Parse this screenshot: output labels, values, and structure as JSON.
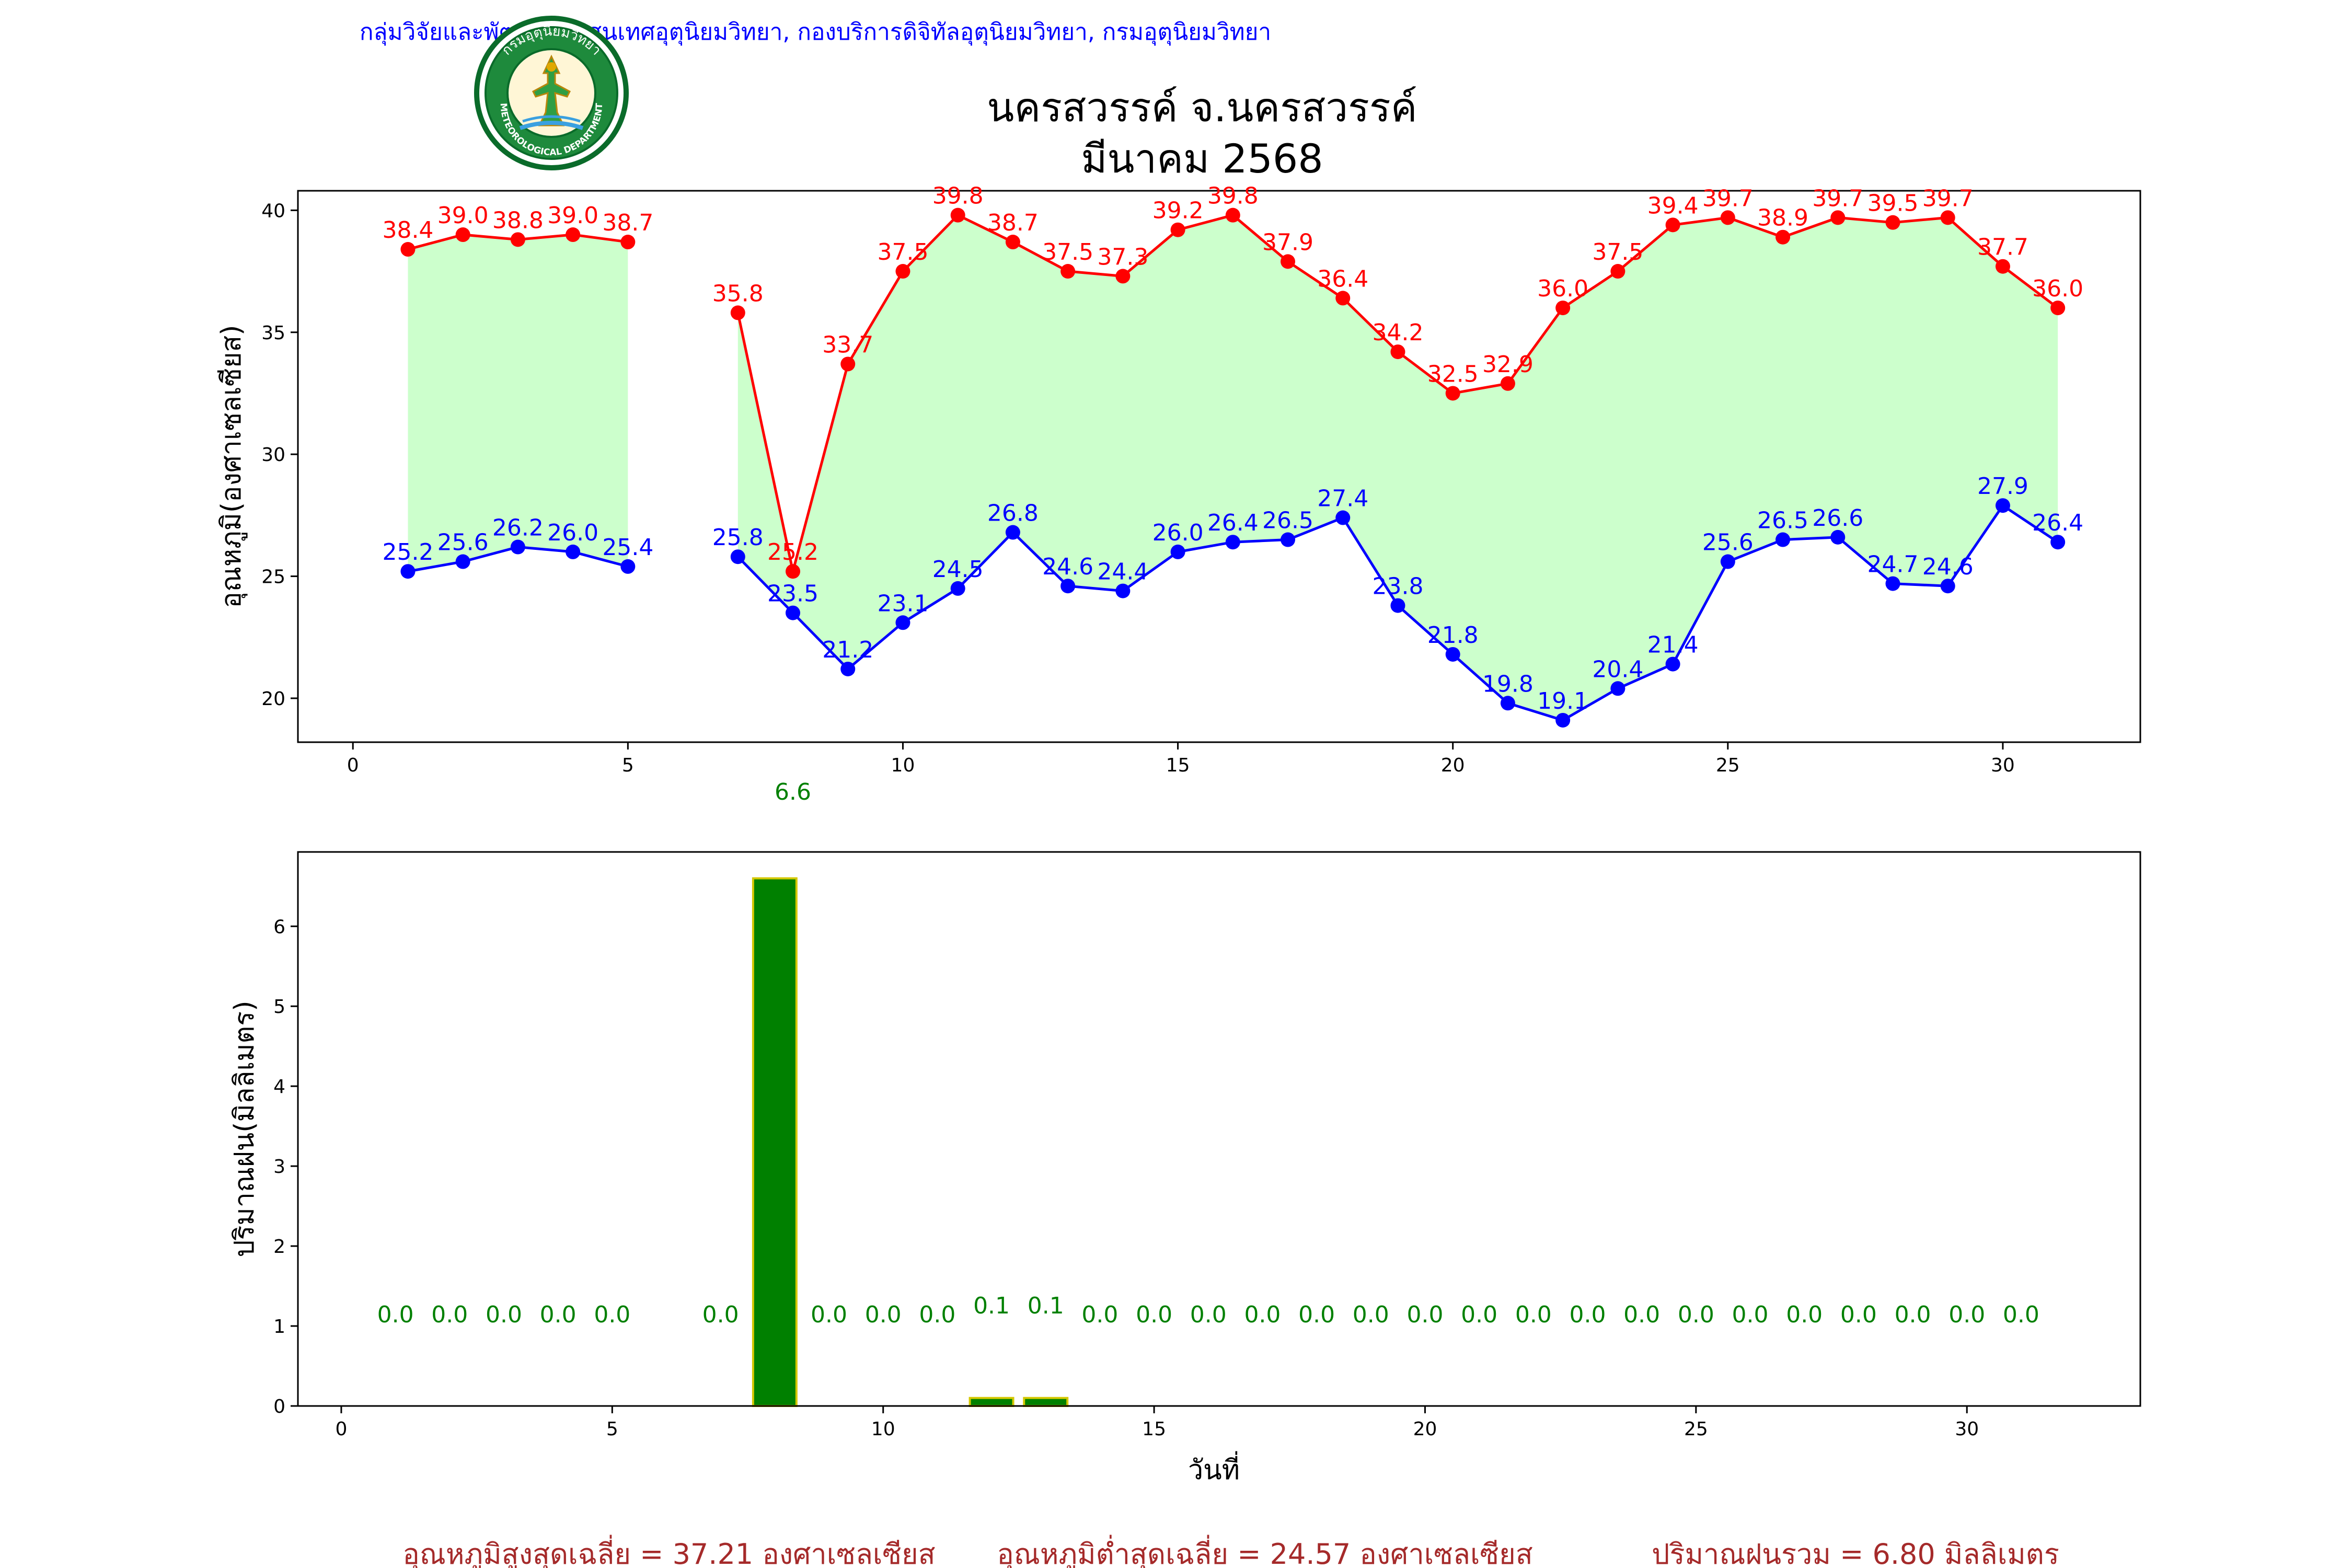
{
  "header": {
    "agency": "กลุ่มวิจัยและพัฒนาสารสนเทศอุตุนิยมวิทยา, กองบริการดิจิทัลอุตุนิยมวิทยา, กรมอุตุนิยมวิทยา",
    "title_line1": "นครสวรรค์  จ.นครสวรรค์",
    "title_line2": "มีนาคม 2568",
    "logo_text_top": "กรมอุตุนิยมวิทยา",
    "logo_text_bottom": "METEOROLOGICAL DEPARTMENT"
  },
  "footer": {
    "avg_max": "อุณหภูมิสูงสุดเฉลี่ย = 37.21 องศาเซลเซียส",
    "avg_min": "อุณหภูมิต่ำสุดเฉลี่ย = 24.57 องศาเซลเซียส",
    "total_rain": "ปริมาณฝนรวม = 6.80 มิลลิเมตร"
  },
  "colors": {
    "max_line": "#ff0000",
    "min_line": "#0000ff",
    "fill": "#ccffcc",
    "rain_bar": "#008000",
    "rain_edge": "#d4c800",
    "header_blue": "#0000ff",
    "footer_brown": "#a52a2a"
  },
  "chart_data": [
    {
      "type": "line",
      "ylabel": "อุณหภูมิ(องศาเซลเซียส)",
      "xlim": [
        -1,
        32.5
      ],
      "ylim": [
        18.2,
        40.8
      ],
      "xticks": [
        0,
        5,
        10,
        15,
        20,
        25,
        30
      ],
      "yticks": [
        20,
        25,
        30,
        35,
        40
      ],
      "rain_note": {
        "x": 8,
        "label": "6.6"
      },
      "days": [
        1,
        2,
        3,
        4,
        5,
        7,
        8,
        9,
        10,
        11,
        12,
        13,
        14,
        15,
        16,
        17,
        18,
        19,
        20,
        21,
        22,
        23,
        24,
        25,
        26,
        27,
        28,
        29,
        30,
        31
      ],
      "series": [
        {
          "key": "max",
          "values": [
            38.4,
            39.0,
            38.8,
            39.0,
            38.7,
            35.8,
            25.2,
            33.7,
            37.5,
            39.8,
            38.7,
            37.5,
            37.3,
            39.2,
            39.8,
            37.9,
            36.4,
            34.2,
            32.5,
            32.9,
            36.0,
            37.5,
            39.4,
            39.7,
            38.9,
            39.7,
            39.5,
            39.7,
            37.7,
            36.0
          ],
          "labels": [
            "38.4",
            "39.0",
            "38.8",
            "39.0",
            "38.7",
            "35.8",
            "25.2",
            "33.7",
            "37.5",
            "39.8",
            "38.7",
            "37.5",
            "37.3",
            "39.2",
            "39.8",
            "37.9",
            "36.4",
            "34.2",
            "32.5",
            "32.9",
            "36.0",
            "37.5",
            "39.4",
            "39.7",
            "38.9",
            "39.7",
            "39.5",
            "39.7",
            "37.7",
            "36.0"
          ]
        },
        {
          "key": "min",
          "values": [
            25.2,
            25.6,
            26.2,
            26.0,
            25.4,
            25.8,
            23.5,
            21.2,
            23.1,
            24.5,
            26.8,
            24.6,
            24.4,
            26.0,
            26.4,
            26.5,
            27.4,
            23.8,
            21.8,
            19.8,
            19.1,
            20.4,
            21.4,
            25.6,
            26.5,
            26.6,
            24.7,
            24.6,
            27.9,
            26.4
          ],
          "labels": [
            "25.2",
            "25.6",
            "26.2",
            "26.0",
            "25.4",
            "25.8",
            "23.5",
            "21.2",
            "23.1",
            "24.5",
            "26.8",
            "24.6",
            "24.4",
            "26.0",
            "26.4",
            "26.5",
            "27.4",
            "23.8",
            "21.8",
            "19.8",
            "19.1",
            "20.4",
            "21.4",
            "25.6",
            "26.5",
            "26.6",
            "24.7",
            "24.6",
            "27.9",
            "26.4"
          ]
        }
      ]
    },
    {
      "type": "bar",
      "xlabel": "วันที่",
      "ylabel": "ปริมาณฝน(มิลลิเมตร)",
      "xlim": [
        -0.8,
        33.2
      ],
      "ylim": [
        0,
        6.93
      ],
      "xticks": [
        0,
        5,
        10,
        15,
        20,
        25,
        30
      ],
      "yticks": [
        0,
        1,
        2,
        3,
        4,
        5,
        6
      ],
      "days": [
        1,
        2,
        3,
        4,
        5,
        7,
        8,
        9,
        10,
        11,
        12,
        13,
        14,
        15,
        16,
        17,
        18,
        19,
        20,
        21,
        22,
        23,
        24,
        25,
        26,
        27,
        28,
        29,
        30,
        31
      ],
      "values": [
        0,
        0,
        0,
        0,
        0,
        0,
        6.6,
        0,
        0,
        0,
        0.1,
        0.1,
        0,
        0,
        0,
        0,
        0,
        0,
        0,
        0,
        0,
        0,
        0,
        0,
        0,
        0,
        0,
        0,
        0,
        0
      ],
      "labels": [
        "0.0",
        "0.0",
        "0.0",
        "0.0",
        "0.0",
        "0.0",
        "",
        "0.0",
        "0.0",
        "0.0",
        "0.1",
        "0.1",
        "0.0",
        "0.0",
        "0.0",
        "0.0",
        "0.0",
        "0.0",
        "0.0",
        "0.0",
        "0.0",
        "0.0",
        "0.0",
        "0.0",
        "0.0",
        "0.0",
        "0.0",
        "0.0",
        "0.0",
        "0.0"
      ]
    }
  ]
}
